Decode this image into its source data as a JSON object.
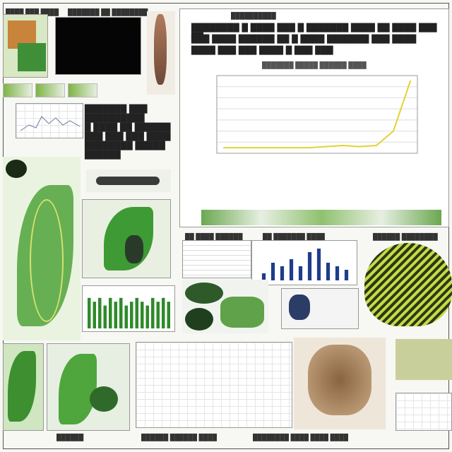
{
  "collage": {
    "top_left_caption": "████ ███ ████",
    "top_mid_caption": "███████ ██ ████████",
    "left_text_block": [
      "███████ ███",
      "██████████",
      "█ ████ ██ ██████",
      "███ ███ ███ ████",
      "████████ █████",
      "██████"
    ],
    "right_header_lines": [
      "████████ █ ████ ███ █ ███████ ████ ██ ████ ███ ██",
      "███ ████ ██████ ██ █ ████ ███████ ███ ████",
      "████ ███ ███ ████ █ ███ ███"
    ],
    "right_chart_subtitle": "███████ █████ ██████ ████",
    "right_chart_title": "██████████",
    "mid_captions": [
      "██ ████ ██████",
      "██ ███████ ████",
      "██████ ████████"
    ],
    "bottom_captions": [
      "██████",
      "██████ ██████ ████",
      "████████ ████ ████ ████"
    ],
    "colors": {
      "accent_green": "#2f8a2a",
      "line_yellow": "#e3d234",
      "bar_blue": "#1f3d8a"
    }
  },
  "chart_data": [
    {
      "type": "line",
      "title": "",
      "xlabel": "",
      "ylabel": "",
      "x": [
        "1",
        "2",
        "3",
        "4",
        "5",
        "6",
        "7",
        "8",
        "9",
        "10",
        "11",
        "12"
      ],
      "series": [
        {
          "values": [
            0.5,
            0.5,
            0.5,
            0.5,
            0.5,
            0.5,
            0.6,
            0.7,
            0.6,
            0.7,
            2.0,
            6.5
          ]
        }
      ],
      "ylim": [
        0,
        7
      ],
      "grid": true
    },
    {
      "type": "bar",
      "categories": [
        "1",
        "2",
        "3",
        "4",
        "5",
        "6",
        "7",
        "8",
        "9",
        "10",
        "11",
        "12",
        "13",
        "14",
        "15",
        "16"
      ],
      "values": [
        8,
        7,
        8,
        6,
        8,
        7,
        8,
        6,
        7,
        8,
        7,
        6,
        8,
        7,
        8,
        7
      ],
      "ylim": [
        0,
        10
      ]
    },
    {
      "type": "bar",
      "categories": [
        "1",
        "2",
        "3",
        "4",
        "5",
        "6",
        "7",
        "8",
        "9",
        "10"
      ],
      "values": [
        2,
        5,
        4,
        6,
        4,
        8,
        9,
        5,
        4,
        3
      ],
      "ylim": [
        0,
        10
      ]
    }
  ]
}
